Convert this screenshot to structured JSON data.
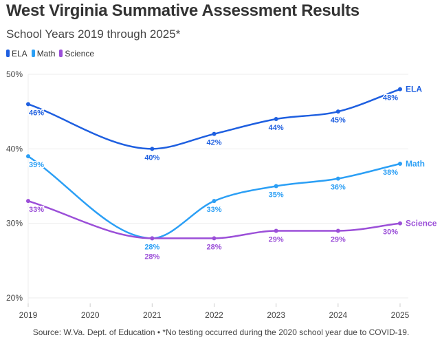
{
  "chart_data": {
    "type": "line",
    "title": "West Virginia Summative Assessment Results",
    "subtitle": "School Years 2019 through 2025*",
    "x": [
      2019,
      2020,
      2021,
      2022,
      2023,
      2024,
      2025
    ],
    "x_tick_labels": [
      "2019",
      "2020",
      "2021",
      "2022",
      "2023",
      "2024",
      "2025"
    ],
    "y_ticks": [
      20,
      30,
      40,
      50
    ],
    "y_tick_labels": [
      "20%",
      "30%",
      "40%",
      "50%"
    ],
    "ylim": [
      20,
      50
    ],
    "grid": true,
    "legend": "top-left",
    "series": [
      {
        "name": "ELA",
        "color": "#1e5fe0",
        "x": [
          2019,
          2021,
          2022,
          2023,
          2024,
          2025
        ],
        "values": [
          46,
          40,
          42,
          44,
          45,
          48
        ],
        "labels": [
          "46%",
          "40%",
          "42%",
          "44%",
          "45%",
          "48%"
        ]
      },
      {
        "name": "Math",
        "color": "#2b9ff5",
        "x": [
          2019,
          2021,
          2022,
          2023,
          2024,
          2025
        ],
        "values": [
          39,
          28,
          33,
          35,
          36,
          38
        ],
        "labels": [
          "39%",
          "28%",
          "33%",
          "35%",
          "36%",
          "38%"
        ]
      },
      {
        "name": "Science",
        "color": "#9b4fd8",
        "x": [
          2019,
          2021,
          2022,
          2023,
          2024,
          2025
        ],
        "values": [
          33,
          28,
          28,
          29,
          29,
          30
        ],
        "labels": [
          "33%",
          "28%",
          "28%",
          "29%",
          "29%",
          "30%"
        ]
      }
    ],
    "footnote": "Source: W.Va. Dept. of Education • *No testing occurred during the 2020 school year due to COVID-19."
  }
}
